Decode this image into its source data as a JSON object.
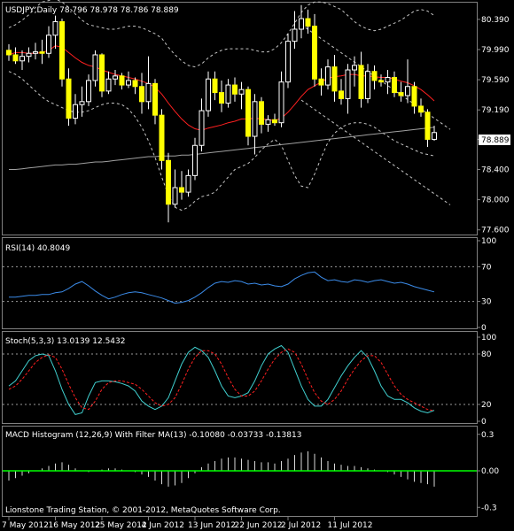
{
  "chart_data": {
    "type": "candlestick",
    "title": "USDJPY,Daily  78.796 78.978 78.786 78.889",
    "symbol": "USDJPY,Daily",
    "last_price_label": "78.889",
    "price_axis": {
      "ticks": [
        "80.390",
        "79.990",
        "79.590",
        "79.190",
        "78.800",
        "78.400",
        "78.000",
        "77.600"
      ],
      "range": [
        77.55,
        80.6
      ]
    },
    "candles": [
      {
        "o": 79.98,
        "h": 80.06,
        "l": 79.84,
        "c": 79.92
      },
      {
        "o": 79.92,
        "h": 80.02,
        "l": 79.8,
        "c": 79.84
      },
      {
        "o": 79.84,
        "h": 79.98,
        "l": 79.72,
        "c": 79.9
      },
      {
        "o": 79.9,
        "h": 80.02,
        "l": 79.82,
        "c": 79.94
      },
      {
        "o": 79.94,
        "h": 80.08,
        "l": 79.86,
        "c": 79.96
      },
      {
        "o": 79.96,
        "h": 80.12,
        "l": 79.8,
        "c": 79.94
      },
      {
        "o": 79.94,
        "h": 80.3,
        "l": 79.88,
        "c": 80.18
      },
      {
        "o": 80.18,
        "h": 80.44,
        "l": 80.0,
        "c": 80.36
      },
      {
        "o": 80.36,
        "h": 80.4,
        "l": 79.5,
        "c": 79.6
      },
      {
        "o": 79.6,
        "h": 79.74,
        "l": 78.98,
        "c": 79.08
      },
      {
        "o": 79.08,
        "h": 79.4,
        "l": 79.0,
        "c": 79.26
      },
      {
        "o": 79.26,
        "h": 79.5,
        "l": 79.1,
        "c": 79.3
      },
      {
        "o": 79.3,
        "h": 79.66,
        "l": 79.24,
        "c": 79.58
      },
      {
        "o": 79.58,
        "h": 79.98,
        "l": 79.5,
        "c": 79.92
      },
      {
        "o": 79.92,
        "h": 79.94,
        "l": 79.36,
        "c": 79.44
      },
      {
        "o": 79.44,
        "h": 79.7,
        "l": 79.4,
        "c": 79.6
      },
      {
        "o": 79.6,
        "h": 79.72,
        "l": 79.52,
        "c": 79.64
      },
      {
        "o": 79.64,
        "h": 79.68,
        "l": 79.46,
        "c": 79.52
      },
      {
        "o": 79.52,
        "h": 79.7,
        "l": 79.48,
        "c": 79.58
      },
      {
        "o": 79.58,
        "h": 79.62,
        "l": 79.4,
        "c": 79.5
      },
      {
        "o": 79.5,
        "h": 79.68,
        "l": 79.14,
        "c": 79.3
      },
      {
        "o": 79.3,
        "h": 79.9,
        "l": 79.2,
        "c": 79.54
      },
      {
        "o": 79.54,
        "h": 79.6,
        "l": 79.0,
        "c": 79.12
      },
      {
        "o": 79.12,
        "h": 79.2,
        "l": 78.4,
        "c": 78.52
      },
      {
        "o": 78.52,
        "h": 78.62,
        "l": 77.7,
        "c": 77.94
      },
      {
        "o": 77.94,
        "h": 78.4,
        "l": 77.9,
        "c": 78.16
      },
      {
        "o": 78.16,
        "h": 78.38,
        "l": 78.0,
        "c": 78.1
      },
      {
        "o": 78.1,
        "h": 78.4,
        "l": 78.04,
        "c": 78.32
      },
      {
        "o": 78.32,
        "h": 78.82,
        "l": 78.26,
        "c": 78.72
      },
      {
        "o": 78.72,
        "h": 79.34,
        "l": 78.64,
        "c": 79.18
      },
      {
        "o": 79.18,
        "h": 79.7,
        "l": 79.1,
        "c": 79.6
      },
      {
        "o": 79.6,
        "h": 79.7,
        "l": 79.32,
        "c": 79.42
      },
      {
        "o": 79.42,
        "h": 79.58,
        "l": 79.16,
        "c": 79.28
      },
      {
        "o": 79.28,
        "h": 79.6,
        "l": 79.22,
        "c": 79.52
      },
      {
        "o": 79.52,
        "h": 79.62,
        "l": 79.3,
        "c": 79.4
      },
      {
        "o": 79.4,
        "h": 79.56,
        "l": 79.2,
        "c": 79.46
      },
      {
        "o": 79.46,
        "h": 79.5,
        "l": 78.72,
        "c": 78.84
      },
      {
        "o": 78.84,
        "h": 79.4,
        "l": 78.6,
        "c": 79.3
      },
      {
        "o": 79.3,
        "h": 79.36,
        "l": 78.88,
        "c": 79.0
      },
      {
        "o": 79.0,
        "h": 79.12,
        "l": 78.9,
        "c": 79.06
      },
      {
        "o": 79.06,
        "h": 79.14,
        "l": 78.98,
        "c": 79.02
      },
      {
        "o": 79.02,
        "h": 79.7,
        "l": 78.96,
        "c": 79.56
      },
      {
        "o": 79.56,
        "h": 80.2,
        "l": 79.48,
        "c": 80.1
      },
      {
        "o": 80.1,
        "h": 80.5,
        "l": 80.0,
        "c": 80.26
      },
      {
        "o": 80.26,
        "h": 80.58,
        "l": 80.14,
        "c": 80.4
      },
      {
        "o": 80.4,
        "h": 80.52,
        "l": 80.2,
        "c": 80.3
      },
      {
        "o": 80.3,
        "h": 80.46,
        "l": 79.5,
        "c": 79.6
      },
      {
        "o": 79.6,
        "h": 79.74,
        "l": 79.38,
        "c": 79.52
      },
      {
        "o": 79.52,
        "h": 79.86,
        "l": 79.46,
        "c": 79.76
      },
      {
        "o": 79.76,
        "h": 79.92,
        "l": 79.3,
        "c": 79.44
      },
      {
        "o": 79.44,
        "h": 79.6,
        "l": 79.26,
        "c": 79.34
      },
      {
        "o": 79.34,
        "h": 79.8,
        "l": 79.14,
        "c": 79.72
      },
      {
        "o": 79.72,
        "h": 79.9,
        "l": 79.5,
        "c": 79.78
      },
      {
        "o": 79.78,
        "h": 79.96,
        "l": 79.22,
        "c": 79.34
      },
      {
        "o": 79.34,
        "h": 79.8,
        "l": 79.28,
        "c": 79.7
      },
      {
        "o": 79.7,
        "h": 79.78,
        "l": 79.46,
        "c": 79.58
      },
      {
        "o": 79.58,
        "h": 79.66,
        "l": 79.5,
        "c": 79.56
      },
      {
        "o": 79.56,
        "h": 79.72,
        "l": 79.4,
        "c": 79.62
      },
      {
        "o": 79.62,
        "h": 79.7,
        "l": 79.36,
        "c": 79.42
      },
      {
        "o": 79.42,
        "h": 79.56,
        "l": 79.3,
        "c": 79.38
      },
      {
        "o": 79.38,
        "h": 79.86,
        "l": 79.28,
        "c": 79.5
      },
      {
        "o": 79.5,
        "h": 79.56,
        "l": 79.14,
        "c": 79.24
      },
      {
        "o": 79.24,
        "h": 79.34,
        "l": 79.1,
        "c": 79.16
      },
      {
        "o": 79.16,
        "h": 79.2,
        "l": 78.7,
        "c": 78.8
      },
      {
        "o": 78.8,
        "h": 78.98,
        "l": 78.78,
        "c": 78.89
      }
    ],
    "overlays": {
      "ma_red": [
        79.92,
        79.95,
        79.95,
        79.94,
        79.94,
        79.95,
        79.98,
        80.04,
        80.02,
        79.95,
        79.88,
        79.82,
        79.78,
        79.76,
        79.72,
        79.69,
        79.66,
        79.64,
        79.62,
        79.6,
        79.57,
        79.54,
        79.49,
        79.4,
        79.28,
        79.17,
        79.07,
        78.99,
        78.94,
        78.92,
        78.95,
        78.97,
        78.99,
        79.02,
        79.04,
        79.07,
        79.07,
        79.08,
        79.07,
        79.06,
        79.05,
        79.08,
        79.16,
        79.26,
        79.37,
        79.46,
        79.51,
        79.56,
        79.61,
        79.63,
        79.64,
        79.66,
        79.66,
        79.64,
        79.64,
        79.63,
        79.62,
        79.62,
        79.6,
        79.57,
        79.55,
        79.51,
        79.46,
        79.39,
        79.31
      ],
      "ma_gray": [
        78.4,
        78.4,
        78.41,
        78.42,
        78.43,
        78.44,
        78.45,
        78.46,
        78.46,
        78.47,
        78.47,
        78.48,
        78.49,
        78.5,
        78.5,
        78.51,
        78.52,
        78.53,
        78.54,
        78.55,
        78.56,
        78.57,
        78.57,
        78.58,
        78.58,
        78.58,
        78.59,
        78.59,
        78.6,
        78.61,
        78.62,
        78.63,
        78.64,
        78.65,
        78.66,
        78.67,
        78.68,
        78.69,
        78.7,
        78.71,
        78.72,
        78.73,
        78.74,
        78.75,
        78.76,
        78.77,
        78.78,
        78.79,
        78.8,
        78.81,
        78.82,
        78.83,
        78.84,
        78.85,
        78.86,
        78.87,
        78.88,
        78.89,
        78.9,
        78.91,
        78.92,
        78.93,
        78.94,
        78.95,
        78.96
      ],
      "band_upper": [
        80.28,
        80.32,
        80.38,
        80.45,
        80.55,
        80.62,
        80.64,
        80.66,
        80.62,
        80.55,
        80.46,
        80.38,
        80.32,
        80.3,
        80.28,
        80.26,
        80.26,
        80.28,
        80.3,
        80.3,
        80.28,
        80.24,
        80.2,
        80.14,
        80.02,
        79.92,
        79.84,
        79.78,
        79.76,
        79.8,
        79.88,
        79.94,
        79.98,
        80.0,
        80.0,
        80.0,
        80.0,
        79.98,
        79.96,
        79.96,
        80.0,
        80.08,
        80.2,
        80.34,
        80.48,
        80.58,
        80.62,
        80.62,
        80.6,
        80.56,
        80.52,
        80.44,
        80.36,
        80.3,
        80.26,
        80.24,
        80.26,
        80.3,
        80.34,
        80.38,
        80.44,
        80.5,
        80.52,
        80.5,
        80.44
      ],
      "band_lower": [
        79.7,
        79.66,
        79.6,
        79.52,
        79.44,
        79.36,
        79.3,
        79.26,
        79.22,
        79.18,
        79.16,
        79.16,
        79.18,
        79.22,
        79.26,
        79.28,
        79.28,
        79.26,
        79.2,
        79.1,
        78.96,
        78.78,
        78.56,
        78.3,
        78.06,
        77.9,
        77.86,
        77.9,
        77.98,
        78.04,
        78.06,
        78.1,
        78.2,
        78.3,
        78.4,
        78.44,
        78.48,
        78.56,
        78.66,
        78.74,
        78.8,
        78.72,
        78.52,
        78.32,
        78.18,
        78.16,
        78.34,
        78.56,
        78.76,
        78.88,
        78.96,
        79.0,
        79.02,
        79.02,
        79.0,
        78.96,
        78.9,
        78.84,
        78.78,
        78.74,
        78.7,
        78.66,
        78.62,
        78.6,
        78.58
      ],
      "channel_upper": {
        "from": [
          44,
          80.32
        ],
        "to": [
          64,
          79.08
        ]
      },
      "channel_lower": {
        "from": [
          44,
          79.32
        ],
        "to": [
          64,
          78.08
        ]
      }
    },
    "rsi": {
      "label": "RSI(14) 40.8049",
      "ticks": [
        "100",
        "70",
        "30",
        "0"
      ],
      "levels": [
        70,
        30
      ],
      "values": [
        35,
        35,
        36,
        37,
        37,
        38,
        38,
        40,
        41,
        45,
        50,
        53,
        48,
        42,
        37,
        33,
        35,
        38,
        40,
        41,
        40,
        38,
        36,
        34,
        31,
        28,
        29,
        31,
        35,
        40,
        46,
        51,
        53,
        52,
        54,
        53,
        50,
        51,
        49,
        50,
        48,
        47,
        50,
        56,
        60,
        63,
        64,
        58,
        54,
        55,
        53,
        52,
        55,
        54,
        52,
        54,
        55,
        53,
        51,
        52,
        50,
        47,
        45,
        43,
        41
      ]
    },
    "stoch": {
      "label": "Stoch(5,3,3) 13.0139 12.5432",
      "ticks": [
        "100",
        "80",
        "20",
        "0"
      ],
      "levels": [
        80,
        20
      ],
      "main": [
        42,
        48,
        60,
        72,
        78,
        80,
        78,
        60,
        38,
        20,
        8,
        10,
        30,
        46,
        48,
        48,
        47,
        45,
        42,
        36,
        24,
        18,
        14,
        18,
        28,
        48,
        68,
        82,
        88,
        84,
        76,
        60,
        42,
        30,
        28,
        30,
        34,
        48,
        66,
        80,
        86,
        90,
        82,
        62,
        42,
        26,
        18,
        18,
        26,
        40,
        54,
        66,
        76,
        84,
        76,
        60,
        42,
        30,
        26,
        26,
        22,
        16,
        12,
        10,
        13
      ],
      "signal": [
        38,
        42,
        50,
        60,
        70,
        76,
        79,
        76,
        62,
        44,
        28,
        16,
        14,
        24,
        38,
        46,
        48,
        48,
        46,
        44,
        38,
        30,
        22,
        18,
        20,
        28,
        44,
        62,
        76,
        84,
        84,
        80,
        68,
        52,
        38,
        30,
        30,
        36,
        48,
        62,
        74,
        82,
        86,
        82,
        68,
        50,
        34,
        24,
        20,
        26,
        36,
        50,
        62,
        72,
        78,
        78,
        70,
        56,
        42,
        32,
        26,
        22,
        18,
        14,
        12.5
      ]
    },
    "macd": {
      "label": "MACD Histogram (12,26,9) With Filter MA(13) -0.10080 -0.03733 -0.13813",
      "ticks": [
        "0.3",
        "0.00",
        "-0.3"
      ],
      "range": [
        -0.32,
        0.32
      ],
      "values": [
        -0.08,
        -0.06,
        -0.04,
        -0.02,
        0.0,
        0.02,
        0.04,
        0.06,
        0.07,
        0.05,
        0.02,
        0.0,
        -0.01,
        0.0,
        0.01,
        0.02,
        0.02,
        0.01,
        0.0,
        -0.01,
        -0.03,
        -0.05,
        -0.08,
        -0.11,
        -0.13,
        -0.12,
        -0.1,
        -0.06,
        -0.02,
        0.03,
        0.06,
        0.08,
        0.1,
        0.11,
        0.11,
        0.1,
        0.09,
        0.08,
        0.07,
        0.07,
        0.06,
        0.08,
        0.1,
        0.13,
        0.15,
        0.16,
        0.14,
        0.11,
        0.08,
        0.06,
        0.05,
        0.04,
        0.04,
        0.03,
        0.02,
        0.01,
        0.0,
        -0.01,
        -0.03,
        -0.05,
        -0.07,
        -0.09,
        -0.1,
        -0.11,
        -0.13
      ]
    },
    "x_axis": {
      "labels": [
        "7 May 2012",
        "16 May 2012",
        "25 May 2012",
        "4 Jun 2012",
        "13 Jun 2012",
        "22 Jun 2012",
        "2 Jul 2012",
        "11 Jul 2012"
      ],
      "label_bar_index": [
        0,
        7,
        14,
        21,
        28,
        35,
        42,
        49
      ]
    }
  },
  "footer": {
    "copyright": "Lionstone Trading Station, © 2001-2012, MetaQuotes Software Corp."
  },
  "colors": {
    "background": "#000000",
    "candle_body": "#ffff00",
    "wick": "#ffffff",
    "ma_red": "#ff2020",
    "ma_gray": "#a0a0a0",
    "bands": "#c8c8c8",
    "rsi_line": "#3b8be8",
    "stoch_main": "#40d0d0",
    "stoch_signal": "#ff2020",
    "macd_hist": "#d8d8d8",
    "macd_zero": "#00ff00",
    "grid": "#808080",
    "price_box_bg": "#ffffff",
    "price_box_fg": "#000000"
  }
}
